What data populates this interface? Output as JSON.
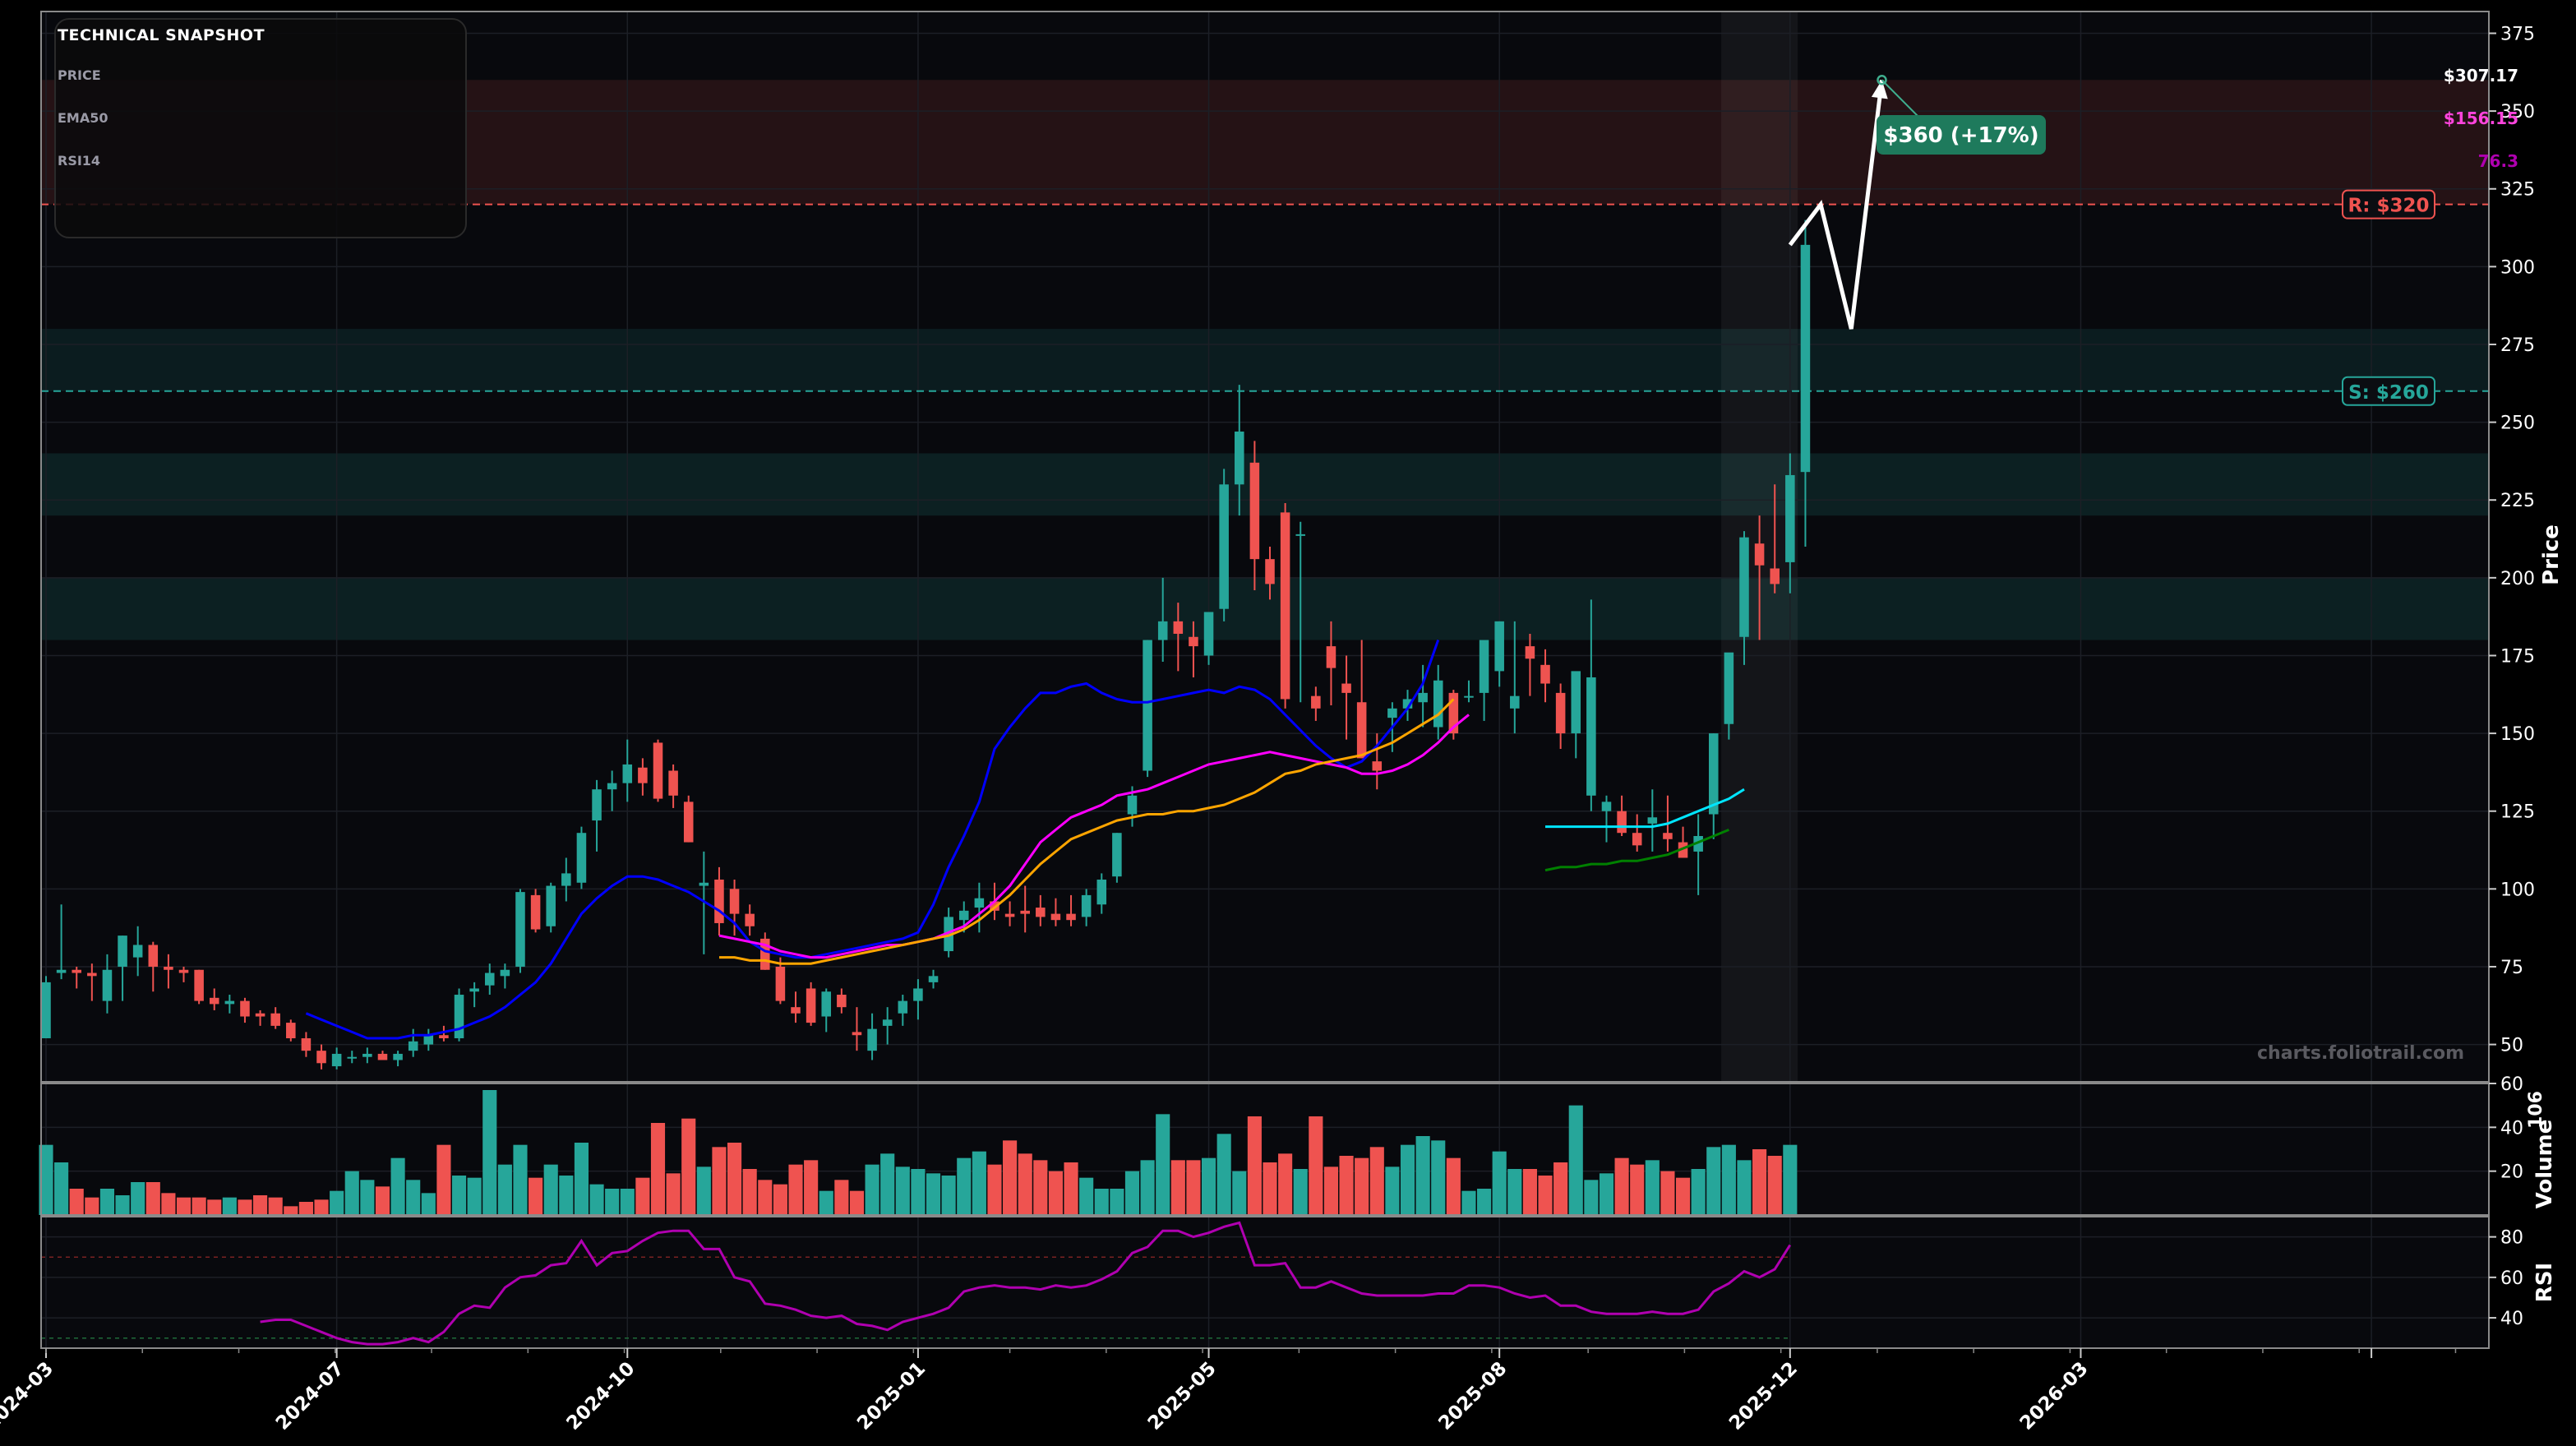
{
  "colors": {
    "background": "#000000",
    "panel_bg": "#08090d",
    "grid": "#1c1f26",
    "up": "#26a69a",
    "down": "#ef5350",
    "resistance": "#ef5350",
    "support": "#26a69a",
    "sma20": "#0000ff",
    "ema50": "#ff00ff",
    "sma50": "#ffa500",
    "short_ma": "#00e5ff",
    "long_ma": "#008000",
    "rsi": "#b000b0",
    "projection": "#ffffff",
    "target_badge": "#1e7a5c"
  },
  "info_box": {
    "title": "TECHNICAL SNAPSHOT",
    "rows": [
      {
        "label": "PRICE",
        "value": "$307.17",
        "color": "#ffffff"
      },
      {
        "label": "EMA50",
        "value": "$156.15",
        "color": "#ff44dd"
      },
      {
        "label": "RSI14",
        "value": "76.3",
        "color": "#b000b0"
      }
    ]
  },
  "watermark": "charts.foliotrail.com",
  "chart_data": {
    "type": "candlestick",
    "x_tick_labels": [
      "2024-03",
      "2024-07",
      "2024-10",
      "2025-01",
      "2025-05",
      "2025-08",
      "2025-12",
      "2026-03"
    ],
    "x_tick_index": [
      0,
      19,
      38,
      57,
      76,
      95,
      114,
      133
    ],
    "price_axis": {
      "label": "Price",
      "ylim": [
        38,
        382
      ],
      "ticks": [
        50,
        75,
        100,
        125,
        150,
        175,
        200,
        225,
        250,
        275,
        300,
        325,
        350,
        375
      ]
    },
    "volume_axis": {
      "label": "Volume",
      "unit": "10^6",
      "ylim": [
        0,
        60
      ],
      "ticks": [
        20,
        40,
        60
      ]
    },
    "rsi_axis": {
      "label": "RSI",
      "ylim": [
        25,
        90
      ],
      "ticks": [
        40,
        60,
        80
      ]
    },
    "candles_ohlc": [
      [
        52,
        72,
        52,
        70
      ],
      [
        73,
        95,
        71,
        74
      ],
      [
        74,
        75,
        68,
        73
      ],
      [
        73,
        76,
        64,
        72
      ],
      [
        64,
        79,
        60,
        74
      ],
      [
        75,
        85,
        64,
        85
      ],
      [
        78,
        88,
        72,
        82
      ],
      [
        82,
        83,
        67,
        75
      ],
      [
        75,
        79,
        68,
        74
      ],
      [
        74,
        75,
        70,
        73
      ],
      [
        74,
        74,
        63,
        64
      ],
      [
        65,
        68,
        61,
        63
      ],
      [
        63,
        66,
        60,
        64
      ],
      [
        64,
        65,
        57,
        59
      ],
      [
        60,
        61,
        56,
        59
      ],
      [
        60,
        62,
        55,
        56
      ],
      [
        57,
        58,
        51,
        52
      ],
      [
        52,
        54,
        46,
        48
      ],
      [
        48,
        50,
        42,
        44
      ],
      [
        43,
        49,
        42,
        47
      ],
      [
        46,
        48,
        44,
        46
      ],
      [
        46,
        49,
        44,
        47
      ],
      [
        47,
        48,
        45,
        45
      ],
      [
        45,
        48,
        43,
        47
      ],
      [
        48,
        55,
        46,
        51
      ],
      [
        50,
        55,
        48,
        53
      ],
      [
        53,
        56,
        51,
        52
      ],
      [
        52,
        68,
        51,
        66
      ],
      [
        67,
        70,
        62,
        68
      ],
      [
        69,
        76,
        66,
        73
      ],
      [
        72,
        76,
        68,
        74
      ],
      [
        75,
        100,
        73,
        99
      ],
      [
        98,
        100,
        86,
        87
      ],
      [
        88,
        102,
        86,
        101
      ],
      [
        101,
        110,
        96,
        105
      ],
      [
        102,
        120,
        100,
        118
      ],
      [
        122,
        135,
        112,
        132
      ],
      [
        132,
        138,
        125,
        134
      ],
      [
        134,
        148,
        128,
        140
      ],
      [
        139,
        142,
        130,
        134
      ],
      [
        147,
        148,
        128,
        129
      ],
      [
        138,
        140,
        126,
        130
      ],
      [
        128,
        130,
        115,
        115
      ],
      [
        101,
        112,
        79,
        102
      ],
      [
        103,
        107,
        85,
        89
      ],
      [
        100,
        103,
        85,
        92
      ],
      [
        92,
        95,
        85,
        88
      ],
      [
        84,
        86,
        74,
        74
      ],
      [
        75,
        78,
        63,
        64
      ],
      [
        62,
        67,
        57,
        60
      ],
      [
        68,
        70,
        56,
        57
      ],
      [
        59,
        68,
        54,
        67
      ],
      [
        66,
        68,
        60,
        62
      ],
      [
        54,
        62,
        48,
        53
      ],
      [
        48,
        60,
        45,
        55
      ],
      [
        56,
        62,
        50,
        58
      ],
      [
        60,
        66,
        56,
        64
      ],
      [
        64,
        71,
        58,
        68
      ],
      [
        70,
        74,
        68,
        72
      ],
      [
        80,
        94,
        78,
        91
      ],
      [
        90,
        96,
        86,
        93
      ],
      [
        94,
        102,
        86,
        97
      ],
      [
        96,
        102,
        90,
        93
      ],
      [
        92,
        96,
        88,
        91
      ],
      [
        93,
        101,
        86,
        92
      ],
      [
        94,
        98,
        88,
        91
      ],
      [
        92,
        97,
        88,
        90
      ],
      [
        92,
        98,
        88,
        90
      ],
      [
        91,
        100,
        88,
        98
      ],
      [
        95,
        105,
        92,
        103
      ],
      [
        104,
        118,
        102,
        118
      ],
      [
        124,
        133,
        120,
        130
      ],
      [
        138,
        180,
        136,
        180
      ],
      [
        180,
        200,
        173,
        186
      ],
      [
        186,
        192,
        170,
        182
      ],
      [
        181,
        186,
        168,
        178
      ],
      [
        175,
        188,
        172,
        189
      ],
      [
        190,
        235,
        186,
        230
      ],
      [
        230,
        262,
        220,
        247
      ],
      [
        237,
        244,
        196,
        206
      ],
      [
        206,
        210,
        193,
        198
      ],
      [
        221,
        224,
        158,
        161
      ],
      [
        214,
        218,
        160,
        214
      ],
      [
        162,
        165,
        154,
        158
      ],
      [
        178,
        186,
        159,
        171
      ],
      [
        166,
        175,
        148,
        163
      ],
      [
        160,
        180,
        142,
        142
      ],
      [
        141,
        150,
        132,
        138
      ],
      [
        155,
        160,
        144,
        158
      ],
      [
        158,
        164,
        154,
        161
      ],
      [
        160,
        172,
        152,
        163
      ],
      [
        152,
        172,
        148,
        167
      ],
      [
        163,
        164,
        148,
        150
      ],
      [
        162,
        167,
        160,
        162
      ],
      [
        163,
        170,
        154,
        180
      ],
      [
        170,
        186,
        165,
        186
      ],
      [
        158,
        186,
        150,
        162
      ],
      [
        178,
        182,
        162,
        174
      ],
      [
        172,
        177,
        160,
        166
      ],
      [
        163,
        166,
        145,
        150
      ],
      [
        150,
        160,
        142,
        170
      ],
      [
        130,
        193,
        125,
        168
      ],
      [
        125,
        130,
        115,
        128
      ],
      [
        125,
        130,
        117,
        118
      ],
      [
        118,
        124,
        112,
        114
      ],
      [
        121,
        132,
        112,
        123
      ],
      [
        118,
        130,
        112,
        116
      ],
      [
        115,
        120,
        110,
        110
      ],
      [
        112,
        124,
        98,
        117
      ],
      [
        124,
        150,
        116,
        150
      ],
      [
        153,
        175,
        148,
        176
      ],
      [
        181,
        215,
        172,
        213
      ],
      [
        211,
        220,
        180,
        204
      ],
      [
        203,
        230,
        195,
        198
      ],
      [
        205,
        240,
        195,
        233
      ],
      [
        234,
        315,
        210,
        307
      ]
    ],
    "volume_millions": [
      32,
      24,
      12,
      8,
      12,
      9,
      15,
      15,
      10,
      8,
      8,
      7,
      8,
      7,
      9,
      8,
      4,
      6,
      7,
      11,
      20,
      16,
      13,
      26,
      16,
      10,
      32,
      18,
      17,
      57,
      23,
      32,
      17,
      23,
      18,
      33,
      14,
      12,
      12,
      17,
      42,
      19,
      44,
      22,
      31,
      33,
      21,
      16,
      14,
      23,
      25,
      11,
      16,
      11,
      23,
      28,
      22,
      21,
      19,
      18,
      26,
      29,
      23,
      34,
      28,
      25,
      20,
      24,
      17,
      12,
      12,
      20,
      25,
      46,
      25,
      25,
      26,
      37,
      20,
      45,
      24,
      28,
      21,
      45,
      22,
      27,
      26,
      31,
      22,
      32,
      36,
      34,
      26,
      11,
      12,
      29,
      21,
      21,
      18,
      24,
      50,
      16,
      19,
      26,
      23,
      25,
      20,
      17,
      21,
      31,
      32,
      25,
      30,
      27,
      32
    ],
    "rsi14": [
      null,
      null,
      null,
      null,
      null,
      null,
      null,
      null,
      null,
      null,
      null,
      null,
      null,
      null,
      38,
      39,
      39,
      36,
      33,
      30,
      28,
      27,
      27,
      28,
      30,
      28,
      33,
      42,
      46,
      45,
      55,
      60,
      61,
      66,
      67,
      78,
      66,
      72,
      73,
      78,
      82,
      83,
      83,
      74,
      74,
      60,
      58,
      47,
      46,
      44,
      41,
      40,
      41,
      37,
      36,
      34,
      38,
      40,
      42,
      45,
      53,
      55,
      56,
      55,
      55,
      54,
      56,
      55,
      56,
      59,
      63,
      72,
      75,
      83,
      83,
      80,
      82,
      85,
      87,
      66,
      66,
      67,
      55,
      55,
      58,
      55,
      52,
      51,
      51,
      51,
      51,
      52,
      52,
      56,
      56,
      55,
      52,
      50,
      51,
      46,
      46,
      43,
      42,
      42,
      42,
      43,
      42,
      42,
      44,
      53,
      57,
      63,
      60,
      64,
      76
    ],
    "moving_averages": [
      {
        "color": "#0000ff",
        "start_index": 17,
        "values": [
          60,
          58,
          56,
          54,
          52,
          52,
          52,
          53,
          53,
          54,
          55,
          57,
          59,
          62,
          66,
          70,
          76,
          84,
          92,
          97,
          101,
          104,
          104,
          103,
          101,
          99,
          96,
          93,
          89,
          83,
          80,
          79,
          78,
          78,
          79,
          80,
          81,
          82,
          83,
          84,
          86,
          95,
          107,
          117,
          128,
          145,
          152,
          158,
          163,
          163,
          165,
          166,
          163,
          161,
          160,
          160,
          161,
          162,
          163,
          164,
          163,
          165,
          164,
          161,
          156,
          151,
          146,
          142,
          139,
          141,
          146,
          152,
          158,
          166,
          180
        ]
      },
      {
        "color": "#ff00ff",
        "start_index": 44,
        "values": [
          85,
          84,
          83,
          82,
          80,
          79,
          78,
          78,
          79,
          80,
          81,
          82,
          82,
          83,
          84,
          86,
          88,
          92,
          96,
          101,
          108,
          115,
          119,
          123,
          125,
          127,
          130,
          131,
          132,
          134,
          136,
          138,
          140,
          141,
          142,
          143,
          144,
          143,
          142,
          141,
          140,
          139,
          137,
          137,
          138,
          140,
          143,
          147,
          152,
          156
        ]
      },
      {
        "color": "#ffa500",
        "start_index": 44,
        "values": [
          78,
          78,
          77,
          77,
          76,
          76,
          76,
          77,
          78,
          79,
          80,
          81,
          82,
          83,
          84,
          85,
          87,
          90,
          94,
          98,
          103,
          108,
          112,
          116,
          118,
          120,
          122,
          123,
          124,
          124,
          125,
          125,
          126,
          127,
          129,
          131,
          134,
          137,
          138,
          140,
          141,
          142,
          143,
          145,
          147,
          150,
          153,
          156,
          161
        ]
      },
      {
        "color": "#00e5ff",
        "start_index": 98,
        "values": [
          120,
          120,
          120,
          120,
          120,
          120,
          120,
          120,
          121,
          123,
          125,
          127,
          129,
          132
        ]
      },
      {
        "color": "#008000",
        "start_index": 98,
        "values": [
          106,
          107,
          107,
          108,
          108,
          109,
          109,
          110,
          111,
          113,
          115,
          117,
          119
        ]
      }
    ],
    "projection": {
      "start_index": 114,
      "points": [
        [
          114,
          307
        ],
        [
          116,
          320
        ],
        [
          118,
          280
        ],
        [
          120,
          360
        ]
      ]
    },
    "target": {
      "label": "$360 (+17%)",
      "value": 360
    },
    "resistance": {
      "label": "R: $320",
      "value": 320,
      "band": [
        320,
        360
      ]
    },
    "support": {
      "label": "S: $260",
      "value": 260,
      "band": [
        260,
        280
      ]
    },
    "support_bands": [
      [
        220,
        240
      ],
      [
        180,
        200
      ]
    ],
    "highlight_range": [
      110,
      114
    ]
  }
}
